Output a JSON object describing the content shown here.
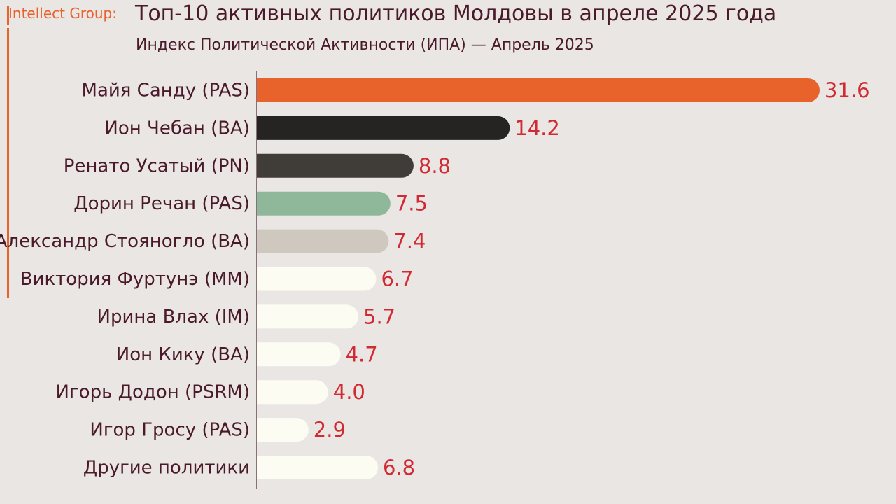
{
  "header": {
    "brand": "Intellect Group:",
    "title": "Топ-10 активных политиков Молдовы в апреле 2025 года",
    "subtitle": "Индекс Политической Активности (ИПА) — Апрель 2025"
  },
  "colors": {
    "accent": "#e8622c",
    "value_text": "#d12a32",
    "label_text": "#4a1a2a",
    "background": "#e9e6e4"
  },
  "chart_data": {
    "type": "bar",
    "orientation": "horizontal",
    "title": "Топ-10 активных политиков Молдовы в апреле 2025 года",
    "subtitle": "Индекс Политической Активности (ИПА) — Апрель 2025",
    "xlabel": "",
    "ylabel": "",
    "xlim": [
      0,
      31.6
    ],
    "grid": false,
    "legend": "none",
    "categories": [
      "Майя Санду (PAS)",
      "Ион Чебан (BA)",
      "Ренато Усатый (PN)",
      "Дорин Речан (PAS)",
      "Александр Стояногло (BA)",
      "Виктория Фуртунэ (MM)",
      "Ирина Влах (IM)",
      "Ион Кику (BA)",
      "Игорь Додон (PSRM)",
      "Игор Гросу (PAS)",
      "Другие политики"
    ],
    "values": [
      31.6,
      14.2,
      8.8,
      7.5,
      7.4,
      6.7,
      5.7,
      4.7,
      4.0,
      2.9,
      6.8
    ],
    "value_labels": [
      "31.6",
      "14.2",
      "8.8",
      "7.5",
      "7.4",
      "6.7",
      "5.7",
      "4.7",
      "4.0",
      "2.9",
      "6.8"
    ],
    "bar_colors": [
      "#e8622c",
      "#252423",
      "#403c38",
      "#8fb89b",
      "#cfc8be",
      "#fdfcf2",
      "#fdfcf2",
      "#fdfcf2",
      "#fdfcf2",
      "#fdfcf2",
      "#fdfcf2"
    ]
  }
}
